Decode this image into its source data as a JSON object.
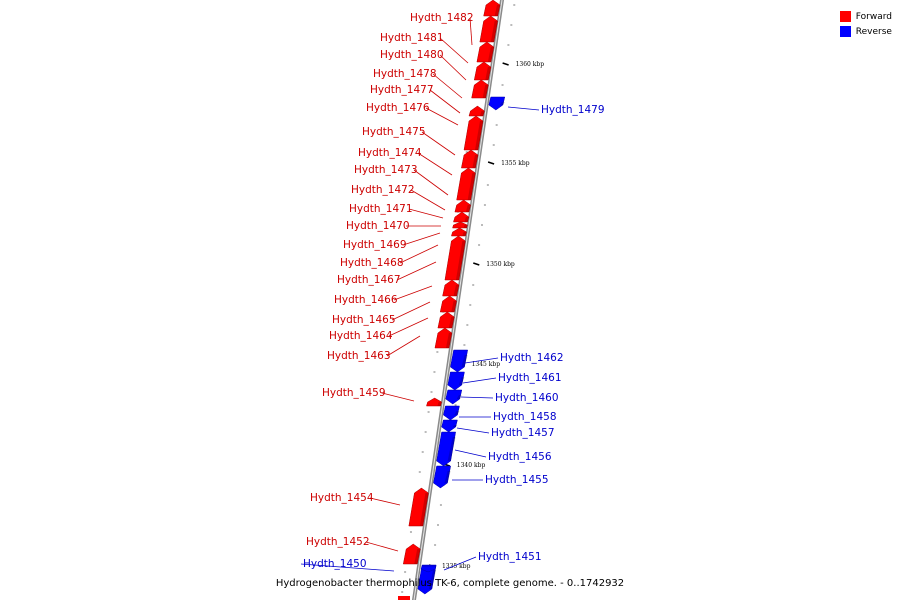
{
  "legend": [
    {
      "label": "Forward",
      "color": "#ff0000"
    },
    {
      "label": "Reverse",
      "color": "#0000ff"
    }
  ],
  "caption": "Hydrogenobacter thermophilus TK-6, complete genome. - 0..1742932",
  "colors": {
    "forward": "#ff0000",
    "reverse": "#0000ff",
    "label_forward": "#cc0000",
    "label_reverse": "#0000cc"
  },
  "genes": [
    {
      "name": "Hydth_1482",
      "strand": "forward"
    },
    {
      "name": "Hydth_1481",
      "strand": "forward"
    },
    {
      "name": "Hydth_1480",
      "strand": "forward"
    },
    {
      "name": "Hydth_1478",
      "strand": "forward"
    },
    {
      "name": "Hydth_1477",
      "strand": "forward"
    },
    {
      "name": "Hydth_1479",
      "strand": "reverse"
    },
    {
      "name": "Hydth_1476",
      "strand": "forward"
    },
    {
      "name": "Hydth_1475",
      "strand": "forward"
    },
    {
      "name": "Hydth_1474",
      "strand": "forward"
    },
    {
      "name": "Hydth_1473",
      "strand": "forward"
    },
    {
      "name": "Hydth_1472",
      "strand": "forward"
    },
    {
      "name": "Hydth_1471",
      "strand": "forward"
    },
    {
      "name": "Hydth_1470",
      "strand": "forward"
    },
    {
      "name": "Hydth_1469",
      "strand": "forward"
    },
    {
      "name": "Hydth_1468",
      "strand": "forward"
    },
    {
      "name": "Hydth_1467",
      "strand": "forward"
    },
    {
      "name": "Hydth_1466",
      "strand": "forward"
    },
    {
      "name": "Hydth_1465",
      "strand": "forward"
    },
    {
      "name": "Hydth_1464",
      "strand": "forward"
    },
    {
      "name": "Hydth_1463",
      "strand": "forward"
    },
    {
      "name": "Hydth_1462",
      "strand": "reverse"
    },
    {
      "name": "Hydth_1461",
      "strand": "reverse"
    },
    {
      "name": "Hydth_1460",
      "strand": "reverse"
    },
    {
      "name": "Hydth_1459",
      "strand": "forward"
    },
    {
      "name": "Hydth_1458",
      "strand": "reverse"
    },
    {
      "name": "Hydth_1457",
      "strand": "reverse"
    },
    {
      "name": "Hydth_1456",
      "strand": "reverse"
    },
    {
      "name": "Hydth_1455",
      "strand": "reverse"
    },
    {
      "name": "Hydth_1454",
      "strand": "forward"
    },
    {
      "name": "Hydth_1452",
      "strand": "forward"
    },
    {
      "name": "Hydth_1451",
      "strand": "reverse"
    },
    {
      "name": "Hydth_1450",
      "strand": "reverse"
    }
  ],
  "ticks": [
    "1360 kbp",
    "1355 kbp",
    "1350 kbp",
    "1345 kbp",
    "1340 kbp",
    "1335 kbp"
  ]
}
